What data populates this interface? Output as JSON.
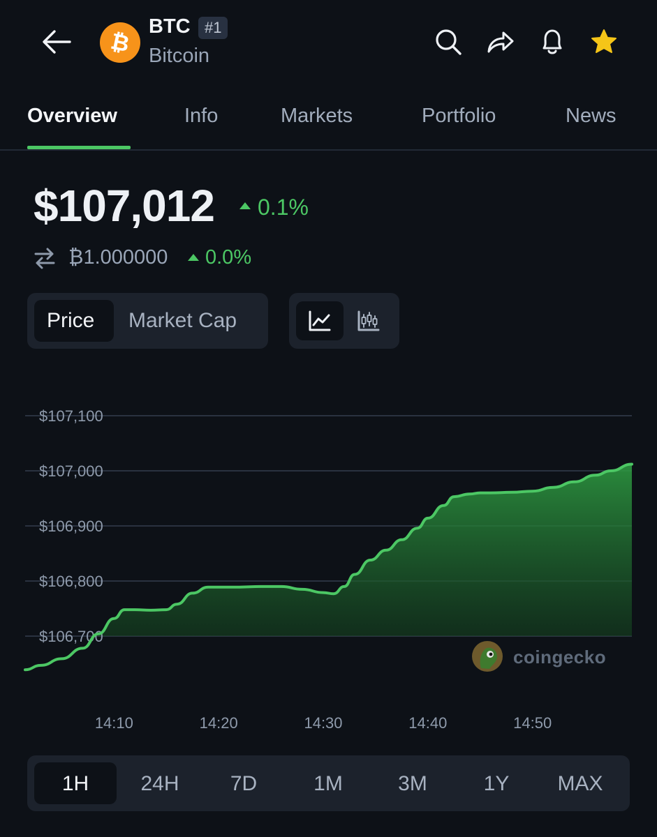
{
  "header": {
    "symbol": "BTC",
    "rank": "#1",
    "name": "Bitcoin",
    "logo_color": "#f7931a",
    "icons": [
      "back-arrow-icon",
      "search-icon",
      "share-icon",
      "bell-icon",
      "star-icon"
    ],
    "star_color": "#f5c518"
  },
  "tabs": [
    {
      "label": "Overview",
      "active": true
    },
    {
      "label": "Info"
    },
    {
      "label": "Markets"
    },
    {
      "label": "Portfolio"
    },
    {
      "label": "News"
    }
  ],
  "price": {
    "value": "$107,012",
    "change": "0.1%",
    "btc_value": "₿1.000000",
    "btc_change": "0.0%",
    "accent": "#4cc764"
  },
  "chart_toggle": {
    "metric": [
      {
        "label": "Price",
        "active": true
      },
      {
        "label": "Market Cap"
      }
    ],
    "chart_types": [
      {
        "icon": "line-chart-icon",
        "active": true
      },
      {
        "icon": "candlestick-chart-icon"
      }
    ]
  },
  "chart_data": {
    "type": "area",
    "ylim": [
      106640,
      107140
    ],
    "y_ticks": [
      107100,
      107000,
      106900,
      106800,
      106700
    ],
    "y_tick_labels": [
      "$107,100",
      "$107,000",
      "$106,900",
      "$106,800",
      "$106,700"
    ],
    "x_ticks": [
      "14:10",
      "14:20",
      "14:30",
      "14:40",
      "14:50"
    ],
    "x_tick_minutes": [
      10,
      20,
      30,
      40,
      50
    ],
    "xlim_minutes": [
      1.5,
      59.5
    ],
    "grid": true,
    "line_color": "#4cc764",
    "x_minutes": [
      1.5,
      3,
      5,
      7,
      8.5,
      10,
      11,
      12,
      13.5,
      15,
      16,
      17.5,
      19,
      20,
      22,
      24,
      26,
      28,
      30,
      31,
      32,
      33,
      34.5,
      36,
      37.5,
      39,
      40,
      41.5,
      42.5,
      44,
      45,
      46,
      48,
      50,
      52,
      54,
      56,
      57.5,
      59.5
    ],
    "values": [
      106639,
      106647,
      106659,
      106678,
      106704,
      106732,
      106748,
      106748,
      106747,
      106748,
      106758,
      106778,
      106789,
      106789,
      106789,
      106790,
      106790,
      106785,
      106779,
      106777,
      106790,
      106812,
      106838,
      106856,
      106875,
      106896,
      106914,
      106937,
      106953,
      106958,
      106960,
      106960,
      106961,
      106963,
      106970,
      106980,
      106992,
      107000,
      107012
    ]
  },
  "watermark": "coingecko",
  "ranges": [
    {
      "label": "1H",
      "active": true
    },
    {
      "label": "24H"
    },
    {
      "label": "7D"
    },
    {
      "label": "1M"
    },
    {
      "label": "3M"
    },
    {
      "label": "1Y"
    },
    {
      "label": "MAX"
    }
  ]
}
